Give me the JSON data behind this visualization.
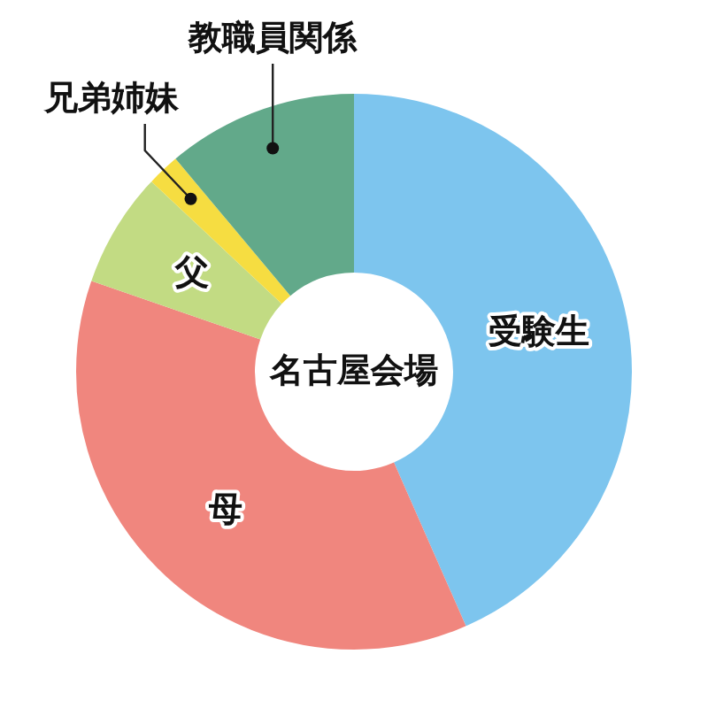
{
  "chart_data": {
    "type": "donut",
    "title": "名古屋会場",
    "categories": [
      "受験生",
      "母",
      "父",
      "兄弟姉妹",
      "教職員関係"
    ],
    "values": [
      43.4,
      36.9,
      6.7,
      1.9,
      11.1
    ],
    "colors": [
      "#7dc5ee",
      "#f0867e",
      "#c2db83",
      "#f6dd41",
      "#62a98a"
    ]
  }
}
